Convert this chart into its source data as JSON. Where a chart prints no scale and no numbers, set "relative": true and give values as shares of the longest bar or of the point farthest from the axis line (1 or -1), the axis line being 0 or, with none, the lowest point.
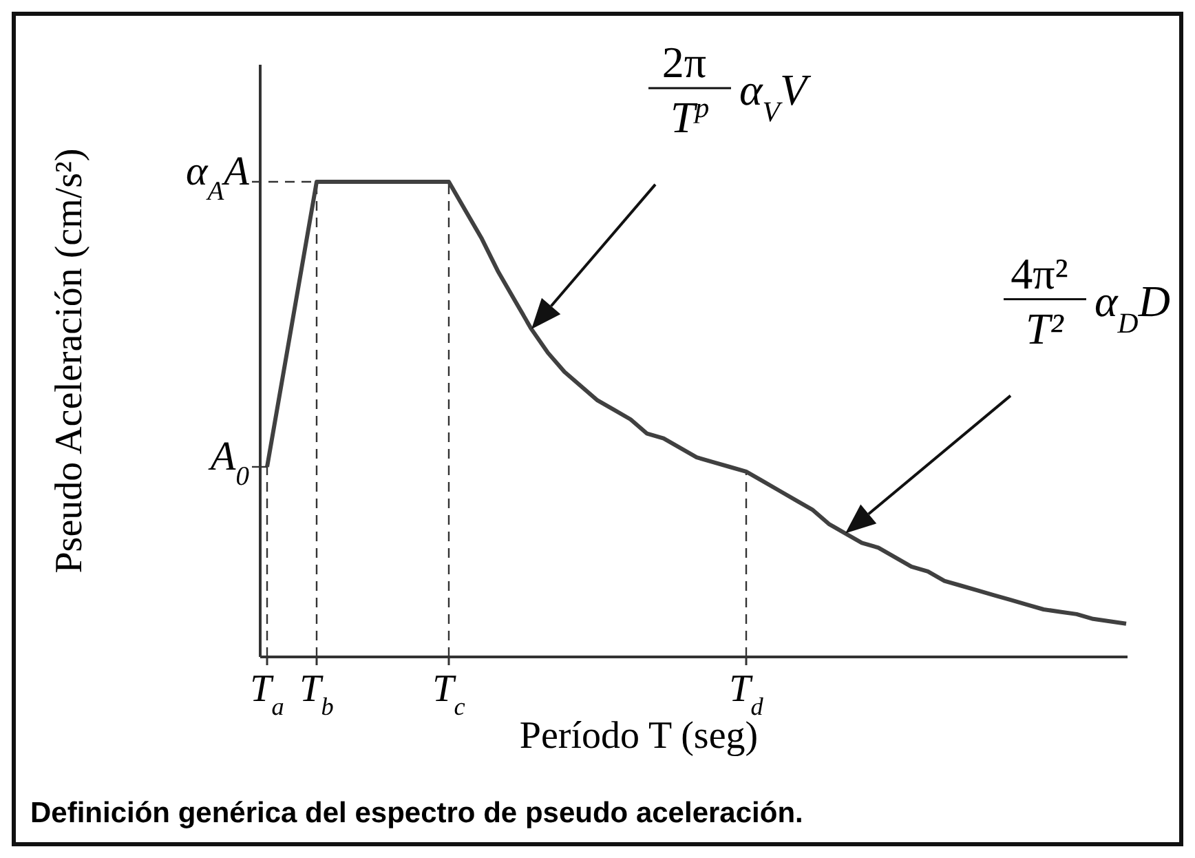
{
  "chart_data": {
    "type": "line",
    "relative": true,
    "xlabel": "Período T (seg)",
    "ylabel": "Pseudo Aceleración (cm/s²)",
    "categories": [
      "T$_{a}$",
      null,
      null,
      "T$_{b}$",
      null,
      null,
      null,
      null,
      null,
      null,
      null,
      "T$_{c}$",
      null,
      null,
      null,
      null,
      null,
      null,
      null,
      null,
      null,
      null,
      null,
      null,
      null,
      null,
      null,
      null,
      null,
      "T$_{d}$",
      null,
      null,
      null,
      null,
      null,
      null,
      null,
      null,
      null,
      null,
      null,
      null,
      null,
      null,
      null,
      null,
      null,
      null,
      null,
      null,
      null,
      null,
      null
    ],
    "series": [
      {
        "color": "#404040",
        "values": [
          0.4,
          0.6,
          0.8,
          1,
          1,
          1,
          1,
          1,
          1,
          1,
          1,
          1,
          0.94,
          0.88,
          0.81,
          0.75,
          0.69,
          0.64,
          0.6,
          0.57,
          0.54,
          0.52,
          0.5,
          0.47,
          0.46,
          0.44,
          0.42,
          0.41,
          0.4,
          0.39,
          0.37,
          0.35,
          0.33,
          0.31,
          0.28,
          0.26,
          0.24,
          0.23,
          0.21,
          0.19,
          0.18,
          0.16,
          0.15,
          0.14,
          0.13,
          0.12,
          0.11,
          0.1,
          0.095,
          0.09,
          0.08,
          0.075,
          0.07
        ]
      }
    ],
    "annotations": [
      {
        "text": "A$_{0}$",
        "x": "T$_{a}$",
        "y": 0.4
      },
      {
        "text": "α$_{A}$A",
        "x": "T$_{b}$",
        "y": 1
      },
      "2π T$^{p}$ α$_{V}$V",
      "4π² T² α$_{D}$D",
      "Definición genérica del espectro de pseudo aceleración."
    ],
    "grid": "x",
    "marker": "none",
    "line_style": "solid"
  }
}
